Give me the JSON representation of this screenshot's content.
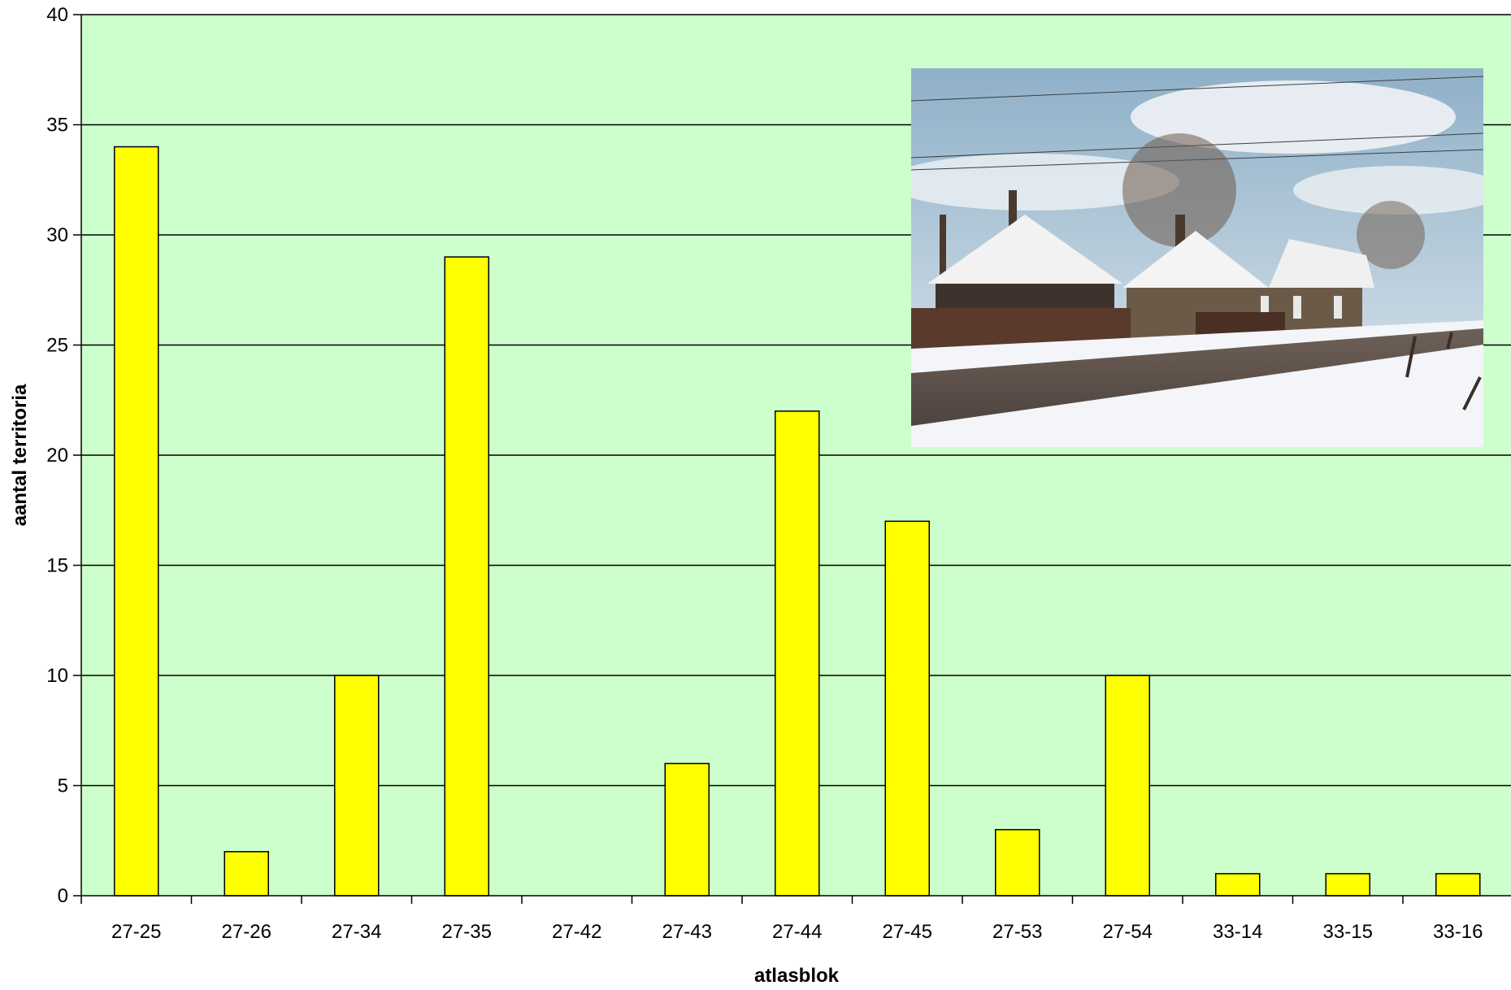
{
  "chart_data": {
    "type": "bar",
    "title": "",
    "xlabel": "atlasblok",
    "ylabel": "aantal territoria",
    "ylim": [
      0,
      40
    ],
    "yticks": [
      0,
      5,
      10,
      15,
      20,
      25,
      30,
      35,
      40
    ],
    "grid": true,
    "categories": [
      "27-25",
      "27-26",
      "27-34",
      "27-35",
      "27-42",
      "27-43",
      "27-44",
      "27-45",
      "27-53",
      "27-54",
      "33-14",
      "33-15",
      "33-16"
    ],
    "values": [
      34,
      2,
      10,
      29,
      0,
      6,
      22,
      17,
      3,
      10,
      1,
      1,
      1
    ],
    "colors": {
      "plot_background": "#ccffcc",
      "bar_fill": "#ffff00",
      "bar_stroke": "#000000",
      "gridline": "#000000"
    },
    "inset_image": "snowy farmhouse photo"
  }
}
